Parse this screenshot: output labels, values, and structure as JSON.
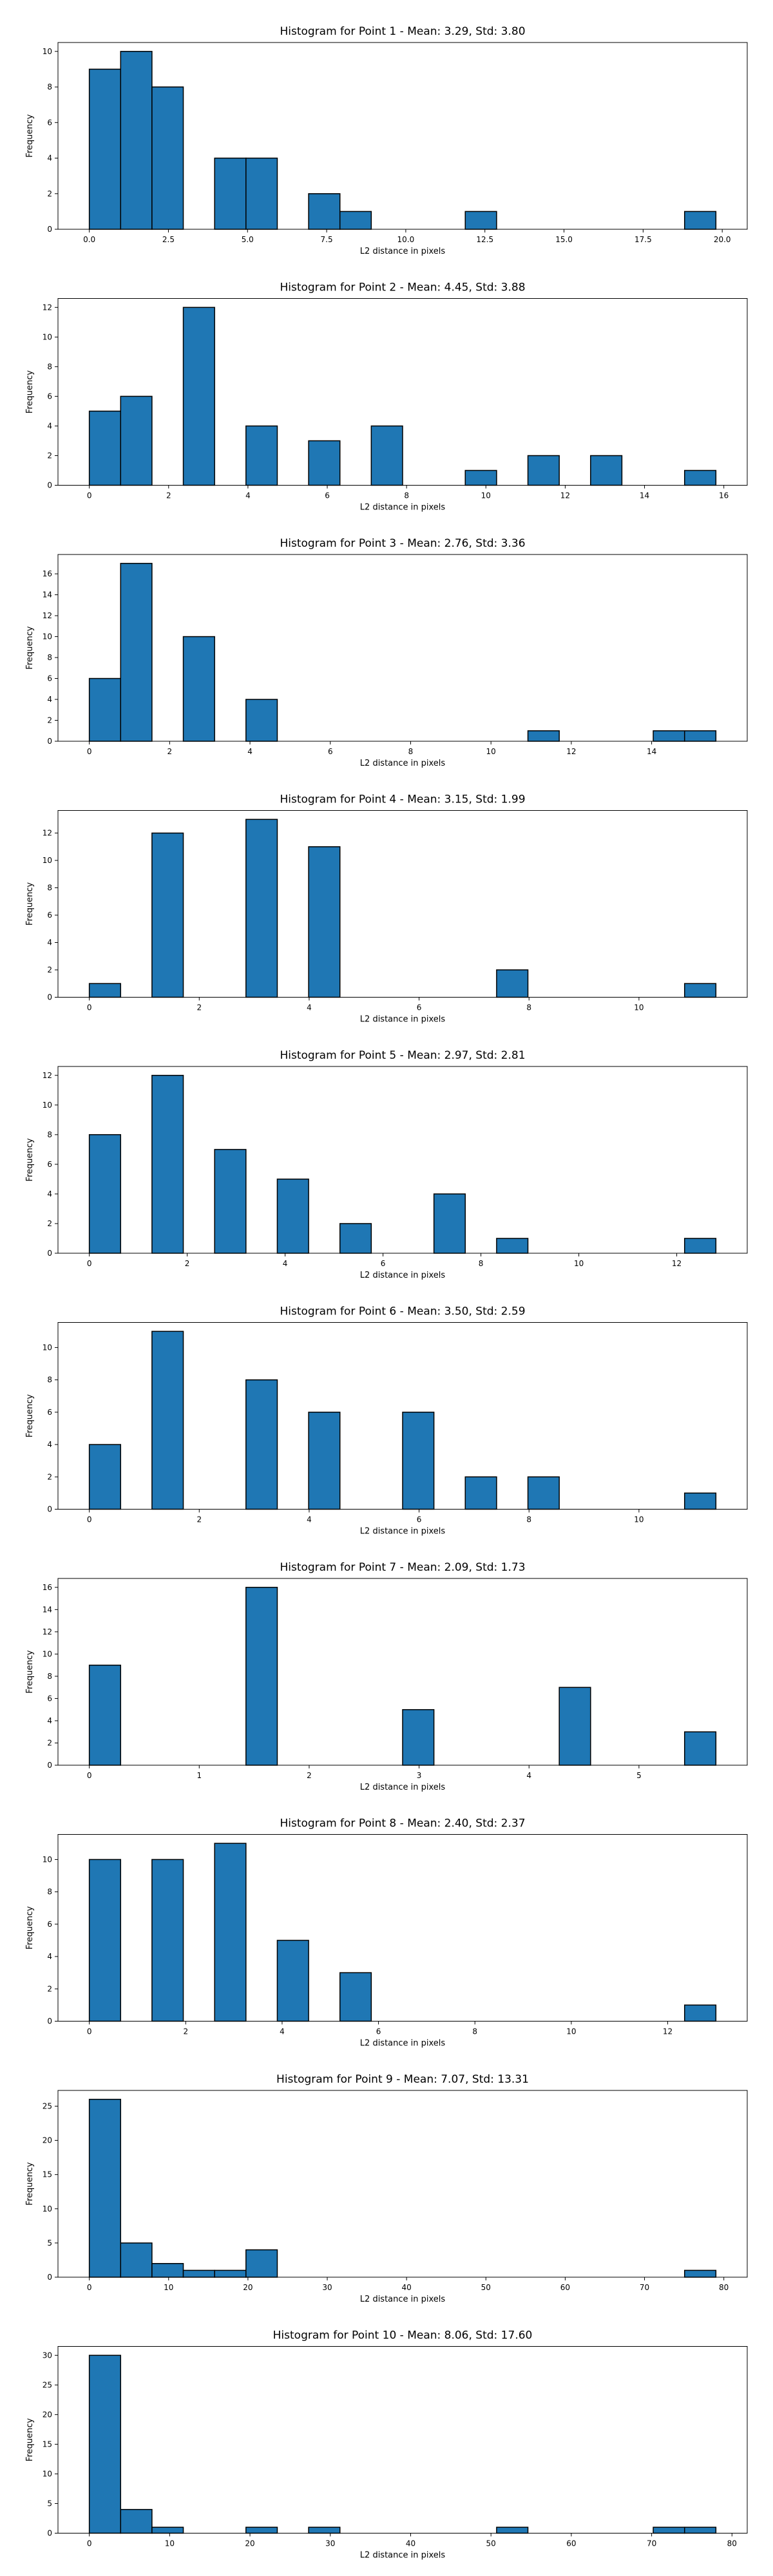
{
  "colors": {
    "bar_fill": "#1f77b4",
    "bar_edge": "#000000",
    "axis": "#000000",
    "background": "#ffffff"
  },
  "chart_data": [
    {
      "type": "bar",
      "title": "Histogram for Point 1 - Mean: 3.29, Std: 3.80",
      "xlabel": "L2 distance in pixels",
      "ylabel": "Frequency",
      "grid": false,
      "xlim": [
        -0.99,
        20.79
      ],
      "ylim": [
        0,
        10.5
      ],
      "xticks": [
        0.0,
        2.5,
        5.0,
        7.5,
        10.0,
        12.5,
        15.0,
        17.5,
        20.0
      ],
      "xtick_labels": [
        "0.0",
        "2.5",
        "5.0",
        "7.5",
        "10.0",
        "12.5",
        "15.0",
        "17.5",
        "20.0"
      ],
      "yticks": [
        0,
        2,
        4,
        6,
        8,
        10
      ],
      "bins": {
        "start": 0.0,
        "width": 0.99
      },
      "values": [
        9,
        10,
        8,
        0,
        4,
        4,
        0,
        2,
        1,
        0,
        0,
        0,
        1,
        0,
        0,
        0,
        0,
        0,
        0,
        1
      ]
    },
    {
      "type": "bar",
      "title": "Histogram for Point 2 - Mean: 4.45, Std: 3.88",
      "xlabel": "L2 distance in pixels",
      "ylabel": "Frequency",
      "grid": false,
      "xlim": [
        -0.79,
        16.59
      ],
      "ylim": [
        0,
        12.6
      ],
      "xticks": [
        0,
        2,
        4,
        6,
        8,
        10,
        12,
        14,
        16
      ],
      "xtick_labels": [
        "0",
        "2",
        "4",
        "6",
        "8",
        "10",
        "12",
        "14",
        "16"
      ],
      "yticks": [
        0,
        2,
        4,
        6,
        8,
        10,
        12
      ],
      "bins": {
        "start": 0.0,
        "width": 0.79
      },
      "values": [
        5,
        6,
        0,
        12,
        0,
        4,
        0,
        3,
        0,
        4,
        0,
        0,
        1,
        0,
        2,
        0,
        2,
        0,
        0,
        1
      ]
    },
    {
      "type": "bar",
      "title": "Histogram for Point 3 - Mean: 2.76, Std: 3.36",
      "xlabel": "L2 distance in pixels",
      "ylabel": "Frequency",
      "grid": false,
      "xlim": [
        -0.78,
        16.38
      ],
      "ylim": [
        0,
        17.85
      ],
      "xticks": [
        0,
        2,
        4,
        6,
        8,
        10,
        12,
        14
      ],
      "xtick_labels": [
        "0",
        "2",
        "4",
        "6",
        "8",
        "10",
        "12",
        "14"
      ],
      "yticks": [
        0,
        2,
        4,
        6,
        8,
        10,
        12,
        14,
        16
      ],
      "bins": {
        "start": 0.0,
        "width": 0.78
      },
      "values": [
        6,
        17,
        0,
        10,
        0,
        4,
        0,
        0,
        0,
        0,
        0,
        0,
        0,
        0,
        1,
        0,
        0,
        0,
        1,
        1
      ]
    },
    {
      "type": "bar",
      "title": "Histogram for Point 4 - Mean: 3.15, Std: 1.99",
      "xlabel": "L2 distance in pixels",
      "ylabel": "Frequency",
      "grid": false,
      "xlim": [
        -0.57,
        11.97
      ],
      "ylim": [
        0,
        13.65
      ],
      "xticks": [
        0,
        2,
        4,
        6,
        8,
        10
      ],
      "xtick_labels": [
        "0",
        "2",
        "4",
        "6",
        "8",
        "10"
      ],
      "yticks": [
        0,
        2,
        4,
        6,
        8,
        10,
        12
      ],
      "bins": {
        "start": 0.0,
        "width": 0.57
      },
      "values": [
        1,
        0,
        12,
        0,
        0,
        13,
        0,
        11,
        0,
        0,
        0,
        0,
        0,
        2,
        0,
        0,
        0,
        0,
        0,
        1
      ]
    },
    {
      "type": "bar",
      "title": "Histogram for Point 5 - Mean: 2.97, Std: 2.81",
      "xlabel": "L2 distance in pixels",
      "ylabel": "Frequency",
      "grid": false,
      "xlim": [
        -0.64,
        13.44
      ],
      "ylim": [
        0,
        12.6
      ],
      "xticks": [
        0,
        2,
        4,
        6,
        8,
        10,
        12
      ],
      "xtick_labels": [
        "0",
        "2",
        "4",
        "6",
        "8",
        "10",
        "12"
      ],
      "yticks": [
        0,
        2,
        4,
        6,
        8,
        10,
        12
      ],
      "bins": {
        "start": 0.0,
        "width": 0.64
      },
      "values": [
        8,
        0,
        12,
        0,
        7,
        0,
        5,
        0,
        2,
        0,
        0,
        4,
        0,
        1,
        0,
        0,
        0,
        0,
        0,
        1
      ]
    },
    {
      "type": "bar",
      "title": "Histogram for Point 6 - Mean: 3.50, Std: 2.59",
      "xlabel": "L2 distance in pixels",
      "ylabel": "Frequency",
      "grid": false,
      "xlim": [
        -0.57,
        11.97
      ],
      "ylim": [
        0,
        11.55
      ],
      "xticks": [
        0,
        2,
        4,
        6,
        8,
        10
      ],
      "xtick_labels": [
        "0",
        "2",
        "4",
        "6",
        "8",
        "10"
      ],
      "yticks": [
        0,
        2,
        4,
        6,
        8,
        10
      ],
      "bins": {
        "start": 0.0,
        "width": 0.57
      },
      "values": [
        4,
        0,
        11,
        0,
        0,
        8,
        0,
        6,
        0,
        0,
        6,
        0,
        2,
        0,
        2,
        0,
        0,
        0,
        0,
        1
      ]
    },
    {
      "type": "bar",
      "title": "Histogram for Point 7 - Mean: 2.09, Std: 1.73",
      "xlabel": "L2 distance in pixels",
      "ylabel": "Frequency",
      "grid": false,
      "xlim": [
        -0.285,
        5.985
      ],
      "ylim": [
        0,
        16.8
      ],
      "xticks": [
        0,
        1,
        2,
        3,
        4,
        5
      ],
      "xtick_labels": [
        "0",
        "1",
        "2",
        "3",
        "4",
        "5"
      ],
      "yticks": [
        0,
        2,
        4,
        6,
        8,
        10,
        12,
        14,
        16
      ],
      "bins": {
        "start": 0.0,
        "width": 0.285
      },
      "values": [
        9,
        0,
        0,
        0,
        0,
        16,
        0,
        0,
        0,
        0,
        5,
        0,
        0,
        0,
        0,
        7,
        0,
        0,
        0,
        3
      ]
    },
    {
      "type": "bar",
      "title": "Histogram for Point 8 - Mean: 2.40, Std: 2.37",
      "xlabel": "L2 distance in pixels",
      "ylabel": "Frequency",
      "grid": false,
      "xlim": [
        -0.65,
        13.65
      ],
      "ylim": [
        0,
        11.55
      ],
      "xticks": [
        0,
        2,
        4,
        6,
        8,
        10,
        12
      ],
      "xtick_labels": [
        "0",
        "2",
        "4",
        "6",
        "8",
        "10",
        "12"
      ],
      "yticks": [
        0,
        2,
        4,
        6,
        8,
        10
      ],
      "bins": {
        "start": 0.0,
        "width": 0.65
      },
      "values": [
        10,
        0,
        10,
        0,
        11,
        0,
        5,
        0,
        3,
        0,
        0,
        0,
        0,
        0,
        0,
        0,
        0,
        0,
        0,
        1
      ]
    },
    {
      "type": "bar",
      "title": "Histogram for Point 9 - Mean: 7.07, Std: 13.31",
      "xlabel": "L2 distance in pixels",
      "ylabel": "Frequency",
      "grid": false,
      "xlim": [
        -3.95,
        82.95
      ],
      "ylim": [
        0,
        27.3
      ],
      "xticks": [
        0,
        10,
        20,
        30,
        40,
        50,
        60,
        70,
        80
      ],
      "xtick_labels": [
        "0",
        "10",
        "20",
        "30",
        "40",
        "50",
        "60",
        "70",
        "80"
      ],
      "yticks": [
        0,
        5,
        10,
        15,
        20,
        25
      ],
      "bins": {
        "start": 0.0,
        "width": 3.95
      },
      "values": [
        26,
        5,
        2,
        1,
        1,
        4,
        0,
        0,
        0,
        0,
        0,
        0,
        0,
        0,
        0,
        0,
        0,
        0,
        0,
        1
      ]
    },
    {
      "type": "bar",
      "title": "Histogram for Point 10 - Mean: 8.06, Std: 17.60",
      "xlabel": "L2 distance in pixels",
      "ylabel": "Frequency",
      "grid": false,
      "xlim": [
        -3.9,
        81.9
      ],
      "ylim": [
        0,
        31.5
      ],
      "xticks": [
        0,
        10,
        20,
        30,
        40,
        50,
        60,
        70,
        80
      ],
      "xtick_labels": [
        "0",
        "10",
        "20",
        "30",
        "40",
        "50",
        "60",
        "70",
        "80"
      ],
      "yticks": [
        0,
        5,
        10,
        15,
        20,
        25,
        30
      ],
      "bins": {
        "start": 0.0,
        "width": 3.9
      },
      "values": [
        30,
        4,
        1,
        0,
        0,
        1,
        0,
        1,
        0,
        0,
        0,
        0,
        0,
        1,
        0,
        0,
        0,
        0,
        1,
        1
      ]
    }
  ]
}
